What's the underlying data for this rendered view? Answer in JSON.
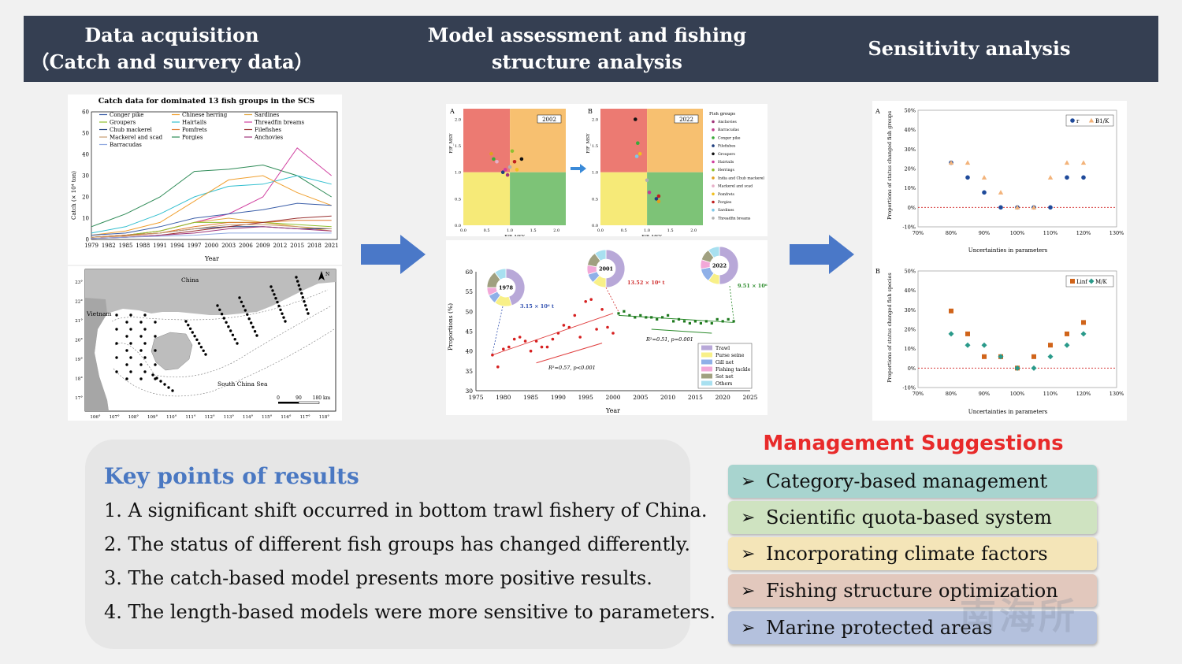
{
  "header": {
    "col1": [
      "Data acquisition",
      "（Catch and survery data）"
    ],
    "col2": [
      "Model assessment and fishing",
      "structure analysis"
    ],
    "col3": "Sensitivity analysis"
  },
  "catch_chart": {
    "title": "Catch data for dominated 13 fish groups in the SCS",
    "ylabel": "Catch (× 10⁴ ton)",
    "xlabel": "Year",
    "yticks": [
      "0",
      "10",
      "20",
      "30",
      "40",
      "50",
      "60"
    ],
    "xticks": [
      "1979",
      "1982",
      "1985",
      "1988",
      "1991",
      "1994",
      "1997",
      "2000",
      "2003",
      "2006",
      "2009",
      "2012",
      "2015",
      "2018",
      "2021"
    ],
    "legend": [
      {
        "name": "Conger pike",
        "color": "#3b5ea8"
      },
      {
        "name": "Chinese herring",
        "color": "#f0a030"
      },
      {
        "name": "Sardines",
        "color": "#e2a640"
      },
      {
        "name": "Groupers",
        "color": "#8fbf2f"
      },
      {
        "name": "Hairtails",
        "color": "#33bfcf"
      },
      {
        "name": "Threadfin breams",
        "color": "#d040a0"
      },
      {
        "name": "Chub mackerel",
        "color": "#1f3f7f"
      },
      {
        "name": "Pomfrets",
        "color": "#e07a30"
      },
      {
        "name": "Filefishes",
        "color": "#9a3030"
      },
      {
        "name": "Mackerel and scad",
        "color": "#c89c70"
      },
      {
        "name": "Porgies",
        "color": "#2e8b57"
      },
      {
        "name": "Anchovies",
        "color": "#a0357a"
      },
      {
        "name": "Barracudas",
        "color": "#8fa8e0"
      }
    ]
  },
  "map": {
    "china": "China",
    "vietnam": "Vietnam",
    "sea": "South China Sea",
    "north": "N",
    "scale": [
      "0",
      "90",
      "180 km"
    ],
    "lat_ticks": [
      "23°",
      "22°",
      "21°",
      "20°",
      "19°",
      "18°",
      "17°"
    ],
    "lon_ticks": [
      "106°",
      "107°",
      "108°",
      "109°",
      "110°",
      "111°",
      "112°",
      "113°",
      "114°",
      "115°",
      "116°",
      "117°",
      "118°"
    ]
  },
  "kobe": {
    "panelA": "A",
    "panelB": "B",
    "yearA": "2002",
    "yearB": "2022",
    "ylabel": "F/F_MSY",
    "xlabel": "B/B_MSY",
    "yticks": [
      "0.0",
      "0.5",
      "1.0",
      "1.5",
      "2.0"
    ],
    "xticks": [
      "0.0",
      "0.5",
      "1.0",
      "1.5",
      "2.0"
    ],
    "legend_title": "Fish groups",
    "legend": [
      {
        "name": "Anchovies",
        "color": "#a0357a"
      },
      {
        "name": "Barracudas",
        "color": "#c04090"
      },
      {
        "name": "Conger pike",
        "color": "#3aaa3a"
      },
      {
        "name": "Filefishes",
        "color": "#1f3f7f"
      },
      {
        "name": "Groupers",
        "color": "#111111"
      },
      {
        "name": "Hairtails",
        "color": "#d040a0"
      },
      {
        "name": "Herrings",
        "color": "#8fbf2f"
      },
      {
        "name": "India and Chub mackerel",
        "color": "#e0a020"
      },
      {
        "name": "Mackerel and scad",
        "color": "#e7b0c8"
      },
      {
        "name": "Pomfrets",
        "color": "#f0c020"
      },
      {
        "name": "Porgies",
        "color": "#c02020"
      },
      {
        "name": "Sardines",
        "color": "#80c8e8"
      },
      {
        "name": "Threadfin breams",
        "color": "#b0b0b0"
      }
    ],
    "colors": {
      "red": "#ec7a72",
      "orange": "#f7c070",
      "yellow": "#f6ea78",
      "green": "#7dc377"
    }
  },
  "proportion_chart": {
    "ylabel": "Proportions (%)",
    "xlabel": "Year",
    "yticks": [
      "30",
      "35",
      "40",
      "45",
      "50",
      "55",
      "60"
    ],
    "xticks": [
      "1975",
      "1980",
      "1985",
      "1990",
      "1995",
      "2000",
      "2005",
      "2010",
      "2015",
      "2020",
      "2025"
    ],
    "stat1": "R²=0.57, p<0.001",
    "stat2": "R²=0.51, p=0.001",
    "donuts": [
      {
        "year": "1978",
        "total": "3.15 × 10⁶ t",
        "total_color": "#3050b0"
      },
      {
        "year": "2001",
        "total": "13.52 × 10⁶ t",
        "total_color": "#d03030"
      },
      {
        "year": "2022",
        "total": "9.51 × 10⁶ t",
        "total_color": "#2a8a2a"
      }
    ],
    "legend": [
      {
        "name": "Trawl",
        "color": "#b8a8d8"
      },
      {
        "name": "Purse seine",
        "color": "#f8f088"
      },
      {
        "name": "Gill net",
        "color": "#8fb0e8"
      },
      {
        "name": "Fishing tackle",
        "color": "#f2a8d8"
      },
      {
        "name": "Set net",
        "color": "#a0a080"
      },
      {
        "name": "Others",
        "color": "#a8e0f0"
      }
    ]
  },
  "sensitivity": {
    "ylabel": "Proportions of status changed fish groups",
    "ylabelB": "Proportions of status changed fish species",
    "xlabel": "Uncertainties in parameters",
    "yticks": [
      "-10%",
      "0%",
      "10%",
      "20%",
      "30%",
      "40%",
      "50%"
    ],
    "xticks": [
      "70%",
      "80%",
      "90%",
      "100%",
      "110%",
      "120%",
      "130%"
    ],
    "panelA": "A",
    "panelB": "B",
    "legendA": [
      "r",
      "B1/K"
    ],
    "legendB": [
      "Linf",
      "M/K"
    ]
  },
  "chart_data": [
    {
      "type": "line",
      "title": "Catch data for dominated 13 fish groups in the SCS",
      "xlabel": "Year",
      "ylabel": "Catch (× 10⁴ ton)",
      "ylim": [
        0,
        60
      ],
      "x": [
        1979,
        1985,
        1991,
        1997,
        2003,
        2009,
        2015,
        2021
      ],
      "series": [
        {
          "name": "Porgies",
          "values": [
            6,
            12,
            20,
            32,
            33,
            35,
            30,
            20
          ]
        },
        {
          "name": "Threadfin breams",
          "values": [
            1,
            2,
            4,
            8,
            12,
            20,
            43,
            30
          ]
        },
        {
          "name": "Hairtails",
          "values": [
            3,
            6,
            12,
            20,
            25,
            26,
            30,
            26
          ]
        },
        {
          "name": "Chinese herring",
          "values": [
            2,
            4,
            8,
            18,
            28,
            30,
            22,
            16
          ]
        },
        {
          "name": "Conger pike",
          "values": [
            2,
            3,
            6,
            10,
            12,
            14,
            17,
            16
          ]
        },
        {
          "name": "Sardines",
          "values": [
            1,
            2,
            4,
            8,
            10,
            8,
            6,
            4
          ]
        },
        {
          "name": "Groupers",
          "values": [
            1,
            2,
            4,
            8,
            8,
            8,
            7,
            6
          ]
        },
        {
          "name": "Chub mackerel",
          "values": [
            1,
            2,
            3,
            5,
            6,
            6,
            5,
            5
          ]
        },
        {
          "name": "Pomfrets",
          "values": [
            1,
            2,
            3,
            6,
            8,
            8,
            9,
            9
          ]
        },
        {
          "name": "Filefishes",
          "values": [
            0.5,
            1,
            2,
            4,
            6,
            8,
            10,
            11
          ]
        },
        {
          "name": "Mackerel and scad",
          "values": [
            1,
            1.5,
            3,
            5,
            7,
            7,
            6,
            5
          ]
        },
        {
          "name": "Anchovies",
          "values": [
            0.5,
            1,
            2,
            3,
            5,
            6,
            5,
            4
          ]
        },
        {
          "name": "Barracudas",
          "values": [
            0.5,
            1,
            1.5,
            2,
            3,
            3,
            3,
            3
          ]
        }
      ]
    },
    {
      "type": "scatter",
      "title": "2002",
      "xlabel": "B/B_MSY",
      "ylabel": "F/F_MSY",
      "xlim": [
        0,
        2.2
      ],
      "ylim": [
        0,
        2.2
      ],
      "points": [
        {
          "x": 0.6,
          "y": 1.35,
          "group": "India and Chub mackerel"
        },
        {
          "x": 0.65,
          "y": 1.25,
          "group": "Conger pike"
        },
        {
          "x": 0.72,
          "y": 1.2,
          "group": "Mackerel and scad"
        },
        {
          "x": 0.85,
          "y": 1.0,
          "group": "Filefishes"
        },
        {
          "x": 0.9,
          "y": 1.05,
          "group": "Hairtails"
        },
        {
          "x": 0.95,
          "y": 0.95,
          "group": "Anchovies"
        },
        {
          "x": 1.05,
          "y": 1.4,
          "group": "Herrings"
        },
        {
          "x": 1.1,
          "y": 1.2,
          "group": "Porgies"
        },
        {
          "x": 1.15,
          "y": 1.05,
          "group": "Pomfrets"
        },
        {
          "x": 1.25,
          "y": 1.25,
          "group": "Groupers"
        },
        {
          "x": 1.0,
          "y": 1.1,
          "group": "Threadfin breams"
        }
      ]
    },
    {
      "type": "scatter",
      "title": "2022",
      "xlabel": "B/B_MSY",
      "ylabel": "F/F_MSY",
      "xlim": [
        0,
        2.2
      ],
      "ylim": [
        0,
        2.2
      ],
      "points": [
        {
          "x": 0.75,
          "y": 2.0,
          "group": "Groupers"
        },
        {
          "x": 0.8,
          "y": 1.55,
          "group": "Conger pike"
        },
        {
          "x": 0.85,
          "y": 1.35,
          "group": "Pomfrets"
        },
        {
          "x": 0.78,
          "y": 1.3,
          "group": "Sardines"
        },
        {
          "x": 1.0,
          "y": 0.85,
          "group": "Threadfin breams"
        },
        {
          "x": 1.05,
          "y": 0.62,
          "group": "Barracudas"
        },
        {
          "x": 1.25,
          "y": 0.55,
          "group": "Porgies"
        },
        {
          "x": 1.25,
          "y": 0.45,
          "group": "India and Chub mackerel"
        },
        {
          "x": 1.2,
          "y": 0.5,
          "group": "Filefishes"
        }
      ]
    },
    {
      "type": "scatter",
      "xlabel": "Year",
      "ylabel": "Proportions (%)",
      "ylim": [
        30,
        60
      ],
      "xlim": [
        1975,
        2025
      ],
      "series": [
        {
          "x": [
            1978,
            1979,
            1980,
            1981,
            1982,
            1983,
            1984,
            1985,
            1986,
            1987,
            1988,
            1989,
            1990,
            1991,
            1992,
            1993,
            1994,
            1995,
            1996,
            1997,
            1998,
            1999,
            2000
          ],
          "values": [
            39,
            36,
            40.5,
            41,
            43,
            43.5,
            42.5,
            40,
            42.5,
            41,
            41,
            43,
            44.5,
            46.5,
            46,
            49,
            43.5,
            52.5,
            53,
            45.5,
            50.5,
            46,
            44.5
          ]
        },
        {
          "x": [
            2001,
            2002,
            2003,
            2004,
            2005,
            2006,
            2007,
            2008,
            2009,
            2010,
            2011,
            2012,
            2013,
            2014,
            2015,
            2016,
            2017,
            2018,
            2019,
            2020,
            2021,
            2022
          ],
          "values": [
            49.5,
            50,
            49,
            48.5,
            49,
            48.5,
            48.5,
            48,
            48.5,
            49,
            47.5,
            48,
            47.5,
            47,
            47.5,
            47,
            47.5,
            47,
            48,
            47.5,
            48,
            47.5
          ]
        }
      ]
    },
    {
      "type": "scatter",
      "title": "A",
      "xlabel": "Uncertainties in parameters",
      "ylim": [
        -10,
        50
      ],
      "series": [
        {
          "name": "r",
          "x": [
            80,
            85,
            90,
            95,
            100,
            105,
            110,
            115,
            120
          ],
          "values": [
            23,
            15.4,
            7.7,
            0,
            0,
            0,
            0,
            15.4,
            15.4
          ]
        },
        {
          "name": "B1/K",
          "x": [
            80,
            85,
            90,
            95,
            100,
            105,
            110,
            115,
            120
          ],
          "values": [
            23,
            23,
            15.4,
            7.7,
            0,
            0,
            15.4,
            23,
            23
          ]
        }
      ]
    },
    {
      "type": "scatter",
      "title": "B",
      "xlabel": "Uncertainties in parameters",
      "ylim": [
        -10,
        50
      ],
      "series": [
        {
          "name": "Linf",
          "x": [
            80,
            85,
            90,
            95,
            100,
            105,
            110,
            115,
            120
          ],
          "values": [
            29.4,
            17.6,
            5.9,
            5.9,
            0,
            5.9,
            11.8,
            17.6,
            23.5
          ]
        },
        {
          "name": "M/K",
          "x": [
            80,
            85,
            90,
            95,
            100,
            105,
            110,
            115,
            120
          ],
          "values": [
            17.6,
            11.8,
            11.8,
            5.9,
            0,
            0,
            5.9,
            11.8,
            17.6
          ]
        }
      ]
    }
  ],
  "key_points": {
    "title": "Key points of results",
    "items": [
      "1. A significant shift occurred in bottom trawl fishery of China.",
      "2. The status of different fish groups has changed differently.",
      "3. The catch-based model presents more positive results.",
      "4. The length-based models were more  sensitive to parameters."
    ]
  },
  "management": {
    "title": "Management Suggestions",
    "chevron": "➢",
    "items": [
      {
        "label": "Category-based management",
        "color": "#a8d4cf"
      },
      {
        "label": "Scientific quota-based system",
        "color": "#cfe3c1"
      },
      {
        "label": "Incorporating climate factors",
        "color": "#f4e5b8"
      },
      {
        "label": "Fishing structure optimization",
        "color": "#e2c8bd"
      },
      {
        "label": "Marine protected areas",
        "color": "#b4c1dd"
      }
    ]
  },
  "watermark": "南海所"
}
